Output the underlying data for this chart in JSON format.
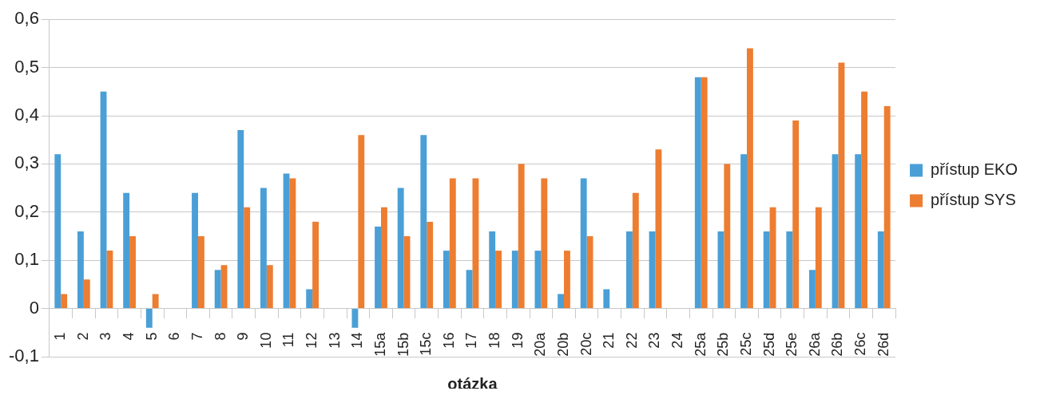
{
  "chart_data": {
    "type": "bar",
    "xlabel": "otázka",
    "categories": [
      "1",
      "2",
      "3",
      "4",
      "5",
      "6",
      "7",
      "8",
      "9",
      "10",
      "11",
      "12",
      "13",
      "14",
      "15a",
      "15b",
      "15c",
      "16",
      "17",
      "18",
      "19",
      "20a",
      "20b",
      "20c",
      "21",
      "22",
      "23",
      "24",
      "25a",
      "25b",
      "25c",
      "25d",
      "25e",
      "26a",
      "26b",
      "26c",
      "26d"
    ],
    "series": [
      {
        "name": "přístup EKO",
        "color": "#4a9fd6",
        "values": [
          0.32,
          0.16,
          0.45,
          0.24,
          -0.04,
          null,
          0.24,
          0.08,
          0.37,
          0.25,
          0.28,
          0.04,
          null,
          -0.04,
          0.17,
          0.25,
          0.36,
          0.12,
          0.08,
          0.16,
          0.12,
          0.12,
          0.03,
          0.27,
          0.04,
          0.16,
          0.16,
          null,
          0.48,
          0.16,
          0.32,
          0.16,
          0.16,
          0.08,
          0.32,
          0.32,
          0.16
        ]
      },
      {
        "name": "přístup SYS",
        "color": "#ed7d31",
        "values": [
          0.03,
          0.06,
          0.12,
          0.15,
          0.03,
          null,
          0.15,
          0.09,
          0.21,
          0.09,
          0.27,
          0.18,
          null,
          0.36,
          0.21,
          0.15,
          0.18,
          0.27,
          0.27,
          0.12,
          0.3,
          0.27,
          0.12,
          0.15,
          null,
          0.24,
          0.33,
          null,
          0.48,
          0.3,
          0.54,
          0.21,
          0.39,
          0.21,
          0.51,
          0.45,
          0.42
        ]
      }
    ],
    "ylim": [
      -0.1,
      0.6
    ],
    "yticks": [
      {
        "value": -0.1,
        "label": "-0,1"
      },
      0,
      {
        "value": 0.1,
        "label": "0,1"
      },
      {
        "value": 0.2,
        "label": "0,2"
      },
      {
        "value": 0.3,
        "label": "0,3"
      },
      {
        "value": 0.4,
        "label": "0,4"
      },
      {
        "value": 0.5,
        "label": "0,5"
      },
      {
        "value": 0.6,
        "label": "0,6"
      }
    ],
    "grid": "y",
    "legend": "right"
  }
}
